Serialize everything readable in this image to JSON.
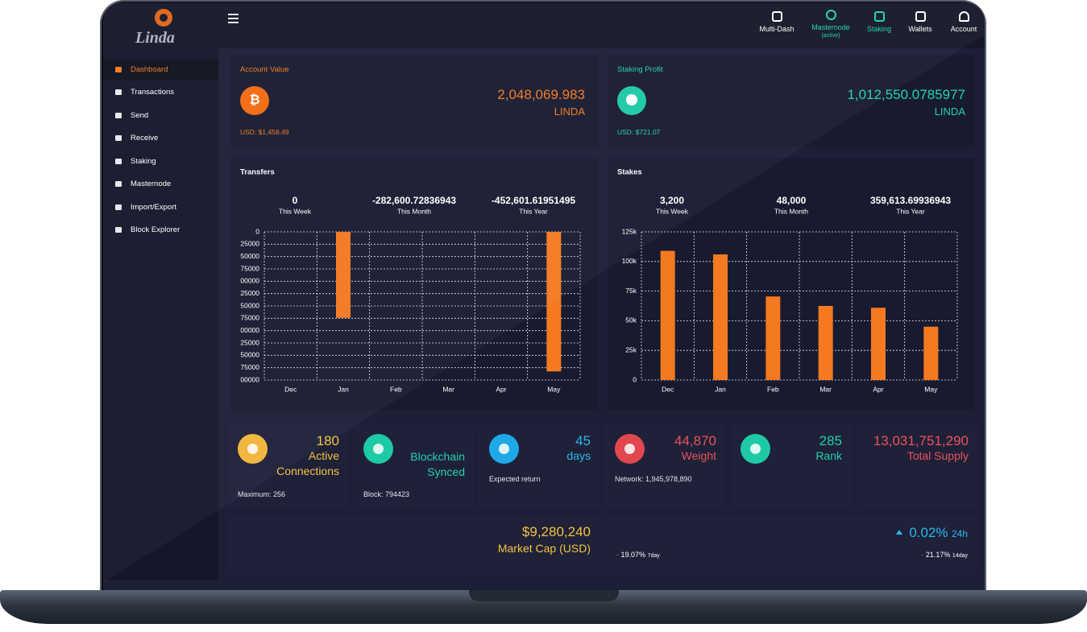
{
  "nav": {
    "brand": "Linda",
    "items": [
      {
        "label": "Multi-Dash"
      },
      {
        "label": "Masternode",
        "status": "(active)"
      },
      {
        "label": "Staking"
      },
      {
        "label": "Wallets"
      },
      {
        "label": "Account"
      }
    ]
  },
  "sidebar": {
    "items": [
      "Dashboard",
      "Transactions",
      "Send",
      "Receive",
      "Staking",
      "Masternode",
      "Import/Export",
      "Block Explorer"
    ]
  },
  "summary": [
    {
      "title": "Account Value",
      "amount": "2,048,069.983",
      "unit": "LINDA",
      "usd": "USD: $1,458.49"
    },
    {
      "title": "Staking Profit",
      "amount": "1,012,550.0785977",
      "unit": "LINDA",
      "usd": "USD: $721.07"
    }
  ],
  "chart_data": [
    {
      "type": "bar",
      "title": "Transfers",
      "stats": [
        {
          "value": "0",
          "label": "This Week"
        },
        {
          "value": "-282,600.72836943",
          "label": "This Month"
        },
        {
          "value": "-452,601.61951495",
          "label": "This Year"
        }
      ],
      "categories": [
        "Dec",
        "Jan",
        "Feb",
        "Mar",
        "Apr",
        "May"
      ],
      "values": [
        0,
        -174000,
        0,
        0,
        0,
        -282601
      ],
      "color": "#f47920",
      "grid": true,
      "ylim": [
        -300000,
        0
      ],
      "yticks": [
        0,
        {
          "value": -25000,
          "label": "25000"
        },
        {
          "value": -50000,
          "label": "50000"
        },
        {
          "value": -75000,
          "label": "75000"
        },
        {
          "value": -100000,
          "label": "00000"
        },
        {
          "value": -125000,
          "label": "25000"
        },
        {
          "value": -150000,
          "label": "50000"
        },
        {
          "value": -175000,
          "label": "75000"
        },
        {
          "value": -200000,
          "label": "00000"
        },
        {
          "value": -225000,
          "label": "25000"
        },
        {
          "value": -250000,
          "label": "50000"
        },
        {
          "value": -275000,
          "label": "75000"
        },
        {
          "value": -300000,
          "label": "00000"
        }
      ]
    },
    {
      "type": "bar",
      "title": "Stakes",
      "stats": [
        {
          "value": "3,200",
          "label": "This Week"
        },
        {
          "value": "48,000",
          "label": "This Month"
        },
        {
          "value": "359,613.69936943",
          "label": "This Year"
        }
      ],
      "categories": [
        "Dec",
        "Jan",
        "Feb",
        "Mar",
        "Apr",
        "May"
      ],
      "values": [
        109000,
        106000,
        70500,
        62500,
        61000,
        45000
      ],
      "color": "#f47920",
      "grid": true,
      "ylim": [
        0,
        125000
      ],
      "yticks": [
        0,
        {
          "value": 25000,
          "label": "25k"
        },
        {
          "value": 50000,
          "label": "50k"
        },
        {
          "value": 75000,
          "label": "75k"
        },
        {
          "value": 100000,
          "label": "100k"
        },
        {
          "value": 125000,
          "label": "125k"
        }
      ]
    }
  ],
  "stats": [
    {
      "lines": [
        "180",
        "Active",
        "Connections"
      ],
      "note": "Maximum: 256"
    },
    {
      "lines": [
        "Blockchain",
        "Synced"
      ],
      "note": "Block: 794423"
    },
    {
      "lines": [
        "45",
        "days"
      ],
      "note": "Expected return"
    },
    {
      "lines": [
        "44,870",
        "Weight"
      ],
      "note": "Network: 1,945,978,890"
    },
    {
      "lines": [
        "285",
        "Rank"
      ]
    },
    {
      "lines": [
        "13,031,751,290",
        "Total Supply"
      ]
    }
  ],
  "market": {
    "value": "$9,280,240",
    "label": "Market Cap (USD)"
  },
  "change": {
    "value": "0.02%",
    "period": "24h",
    "history": [
      {
        "sign": "-",
        "value": "19.07%",
        "period": "7day"
      },
      {
        "sign": "-",
        "value": "21.17%",
        "period": "14day"
      }
    ]
  }
}
